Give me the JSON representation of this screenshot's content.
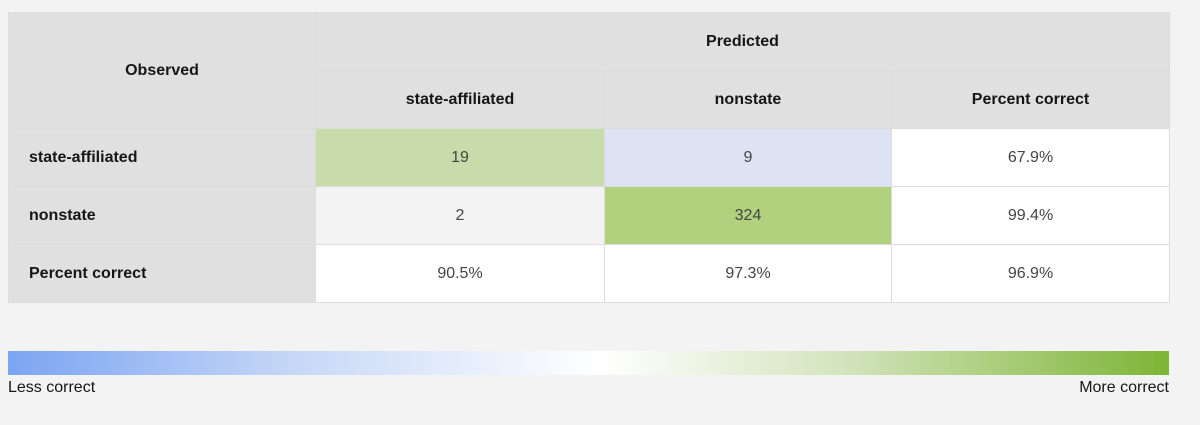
{
  "table": {
    "header": {
      "corner": "Observed",
      "group": "Predicted",
      "columns": [
        "state-affiliated",
        "nonstate",
        "Percent correct"
      ]
    },
    "rows": [
      {
        "label": "state-affiliated",
        "cells": [
          "19",
          "9",
          "67.9%"
        ]
      },
      {
        "label": "nonstate",
        "cells": [
          "2",
          "324",
          "99.4%"
        ]
      },
      {
        "label": "Percent correct",
        "cells": [
          "90.5%",
          "97.3%",
          "96.9%"
        ]
      }
    ]
  },
  "legend": {
    "low": "Less correct",
    "high": "More correct"
  }
}
